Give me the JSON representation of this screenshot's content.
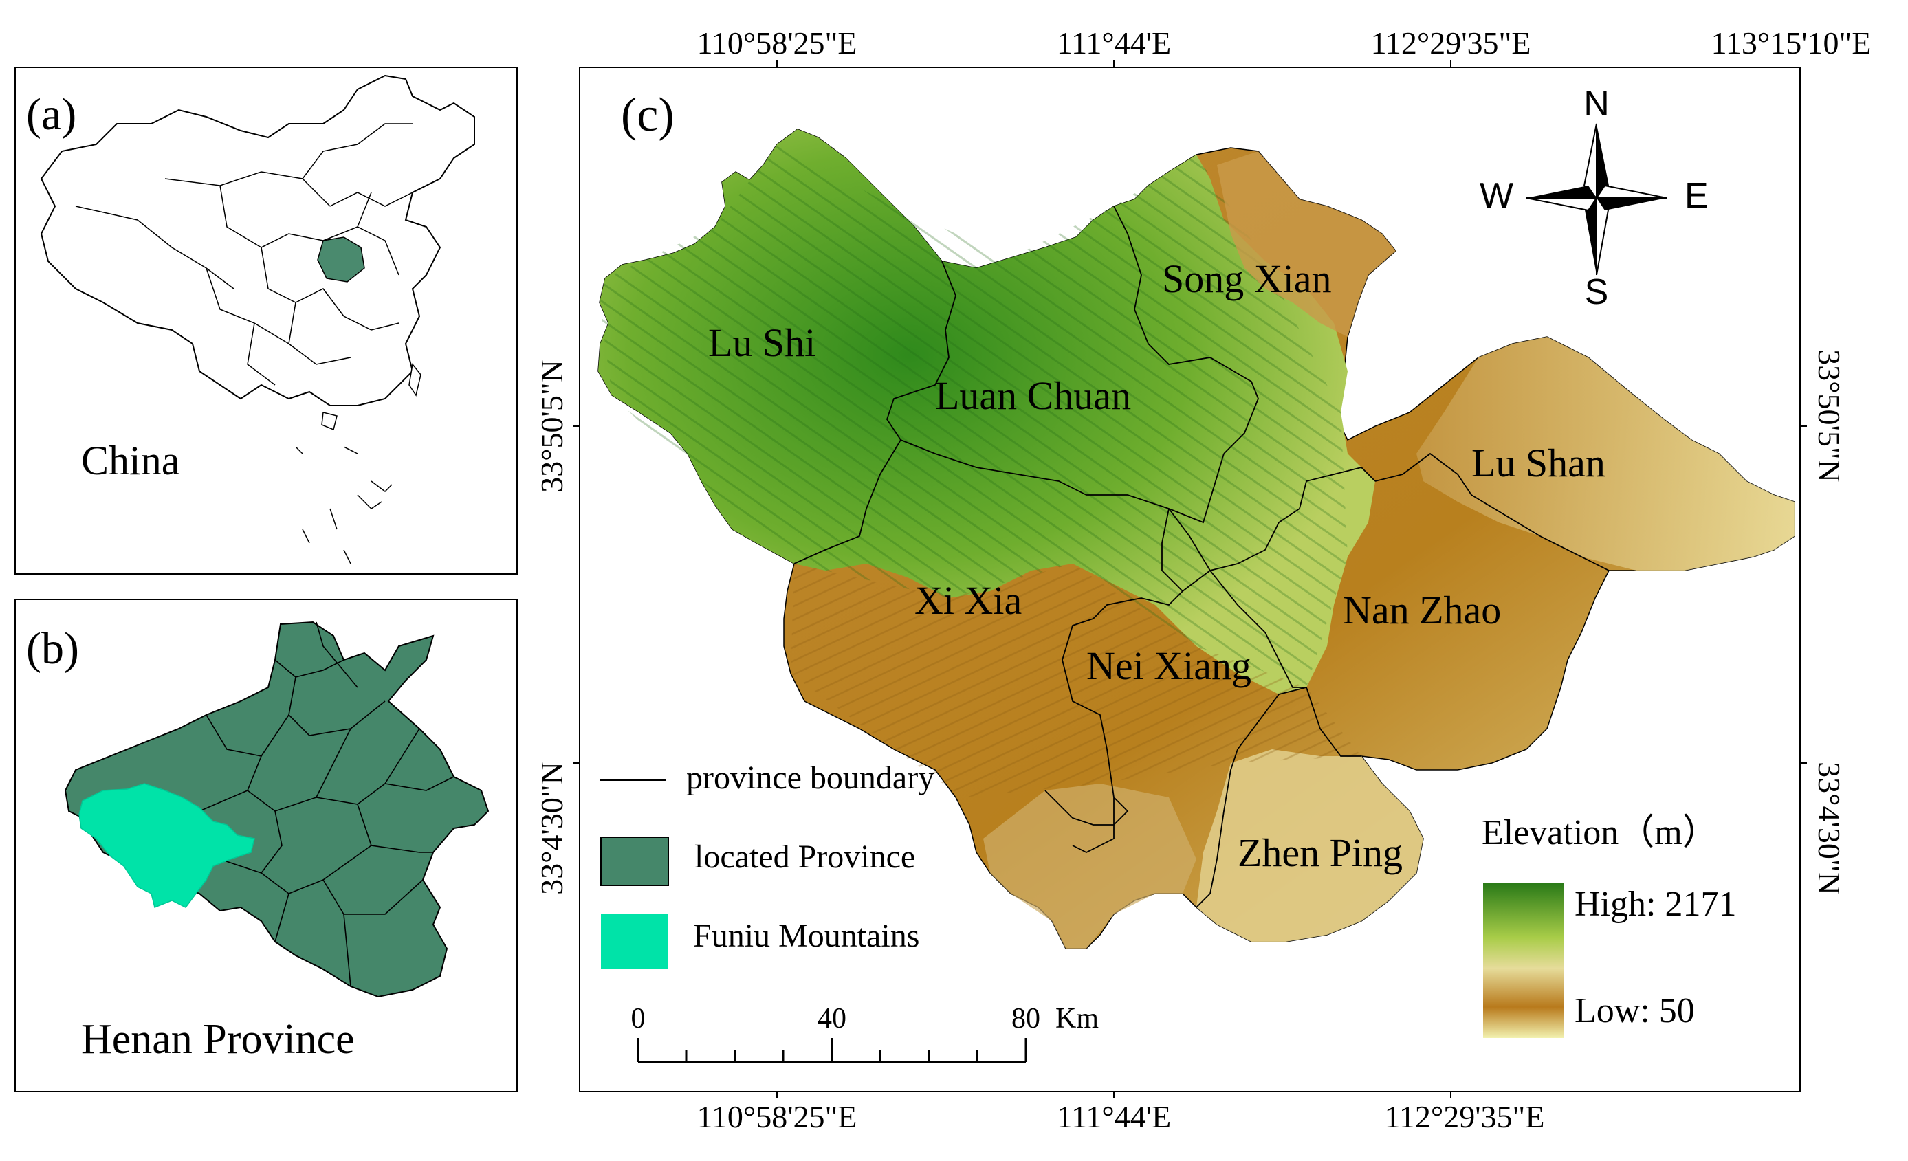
{
  "panels": {
    "a": {
      "label": "(a)",
      "caption": "China"
    },
    "b": {
      "label": "(b)",
      "caption": "Henan Province"
    },
    "c": {
      "label": "(c)"
    }
  },
  "coordinates": {
    "top": [
      "110°58'25\"E",
      "111°44'E",
      "112°29'35\"E",
      "113°15'10\"E"
    ],
    "bottom": [
      "110°58'25\"E",
      "111°44'E",
      "112°29'35\"E"
    ],
    "left": [
      "33°50'5\"N",
      "33°4'30\"N"
    ],
    "right": [
      "33°50'5\"N",
      "33°4'30\"N"
    ]
  },
  "counties": [
    "Lu Shi",
    "Luan Chuan",
    "Song Xian",
    "Lu Shan",
    "Xi Xia",
    "Nei Xiang",
    "Nan Zhao",
    "Zhen Ping"
  ],
  "compass": {
    "n": "N",
    "s": "S",
    "e": "E",
    "w": "W"
  },
  "legend": {
    "boundary": "province boundary",
    "located": "located Province",
    "funiu": "Funiu Mountains"
  },
  "scale_bar": {
    "ticks": [
      "0",
      "40",
      "80"
    ],
    "unit": "Km"
  },
  "elevation": {
    "title": "Elevation（m）",
    "high": "High: 2171",
    "low": "Low: 50"
  },
  "colors": {
    "located_province": "#45876a",
    "funiu": "#00e3a8",
    "high_elev": "#2a7a18",
    "mid_elev": "#d8cf88",
    "low_elev": "#b87a1c"
  },
  "icons": [
    "compass-rose-icon"
  ]
}
